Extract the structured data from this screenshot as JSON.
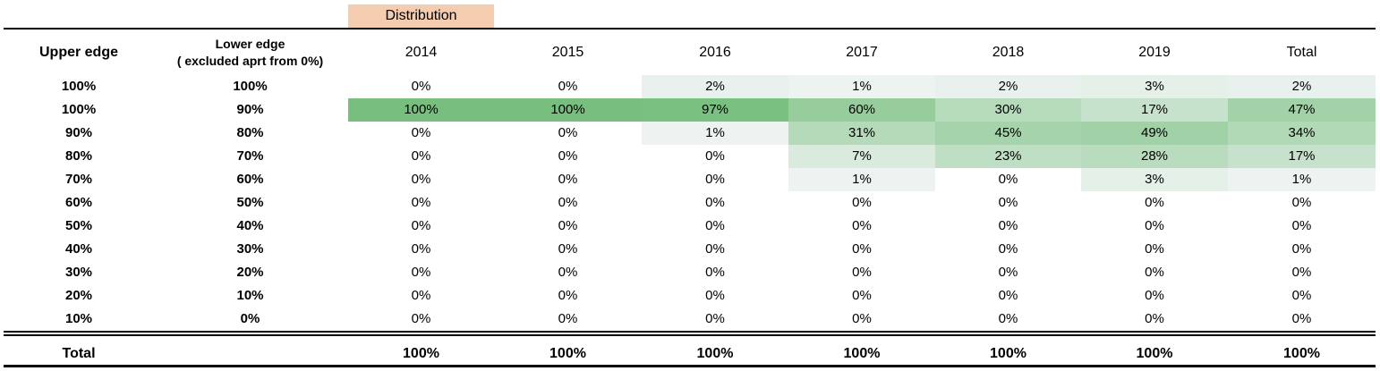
{
  "distribution_label": "Distribution",
  "headers": {
    "upper_edge": "Upper edge",
    "lower_edge_line1": "Lower edge",
    "lower_edge_line2": "( excluded aprt from 0%)",
    "years": [
      "2014",
      "2015",
      "2016",
      "2017",
      "2018",
      "2019",
      "Total"
    ]
  },
  "colors": {
    "header_accent": "#f4ccb0",
    "heat_low": "#f7f8fb",
    "heat_high": "#78bf7f"
  },
  "rows": [
    {
      "upper": "100%",
      "lower": "100%",
      "values": [
        "0%",
        "0%",
        "2%",
        "1%",
        "2%",
        "3%",
        "2%"
      ]
    },
    {
      "upper": "100%",
      "lower": "90%",
      "values": [
        "100%",
        "100%",
        "97%",
        "60%",
        "30%",
        "17%",
        "47%"
      ]
    },
    {
      "upper": "90%",
      "lower": "80%",
      "values": [
        "0%",
        "0%",
        "1%",
        "31%",
        "45%",
        "49%",
        "34%"
      ]
    },
    {
      "upper": "80%",
      "lower": "70%",
      "values": [
        "0%",
        "0%",
        "0%",
        "7%",
        "23%",
        "28%",
        "17%"
      ]
    },
    {
      "upper": "70%",
      "lower": "60%",
      "values": [
        "0%",
        "0%",
        "0%",
        "1%",
        "0%",
        "3%",
        "1%"
      ]
    },
    {
      "upper": "60%",
      "lower": "50%",
      "values": [
        "0%",
        "0%",
        "0%",
        "0%",
        "0%",
        "0%",
        "0%"
      ]
    },
    {
      "upper": "50%",
      "lower": "40%",
      "values": [
        "0%",
        "0%",
        "0%",
        "0%",
        "0%",
        "0%",
        "0%"
      ]
    },
    {
      "upper": "40%",
      "lower": "30%",
      "values": [
        "0%",
        "0%",
        "0%",
        "0%",
        "0%",
        "0%",
        "0%"
      ]
    },
    {
      "upper": "30%",
      "lower": "20%",
      "values": [
        "0%",
        "0%",
        "0%",
        "0%",
        "0%",
        "0%",
        "0%"
      ]
    },
    {
      "upper": "20%",
      "lower": "10%",
      "values": [
        "0%",
        "0%",
        "0%",
        "0%",
        "0%",
        "0%",
        "0%"
      ]
    },
    {
      "upper": "10%",
      "lower": "0%",
      "values": [
        "0%",
        "0%",
        "0%",
        "0%",
        "0%",
        "0%",
        "0%"
      ]
    }
  ],
  "total_row": {
    "label": "Total",
    "values": [
      "100%",
      "100%",
      "100%",
      "100%",
      "100%",
      "100%",
      "100%"
    ]
  }
}
